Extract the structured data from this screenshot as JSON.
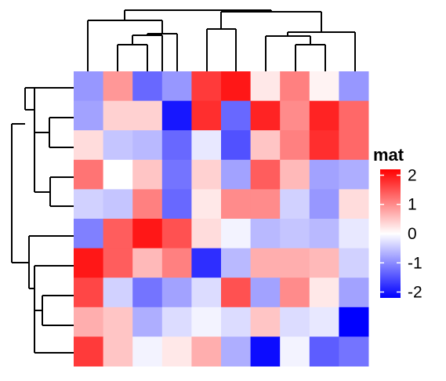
{
  "chart_data": {
    "type": "heatmap",
    "title": "",
    "xlabel": "",
    "ylabel": "",
    "rows": 10,
    "cols": 10,
    "values": [
      [
        -0.9,
        0.9,
        -1.3,
        -0.9,
        1.7,
        2.0,
        0.2,
        1.1,
        0.1,
        -0.9
      ],
      [
        -0.8,
        0.4,
        0.4,
        -2.0,
        1.8,
        -1.3,
        1.9,
        1.0,
        1.9,
        1.3
      ],
      [
        0.3,
        -0.5,
        -0.6,
        -1.3,
        -0.2,
        -1.5,
        0.5,
        1.1,
        1.8,
        1.3
      ],
      [
        1.2,
        0.0,
        0.5,
        -1.2,
        0.4,
        -0.8,
        1.4,
        0.6,
        -0.8,
        -0.7
      ],
      [
        -0.4,
        -0.5,
        1.1,
        -1.3,
        0.2,
        1.0,
        1.0,
        -0.4,
        -0.9,
        0.3
      ],
      [
        -1.1,
        1.4,
        2.0,
        1.5,
        0.3,
        -0.1,
        -0.6,
        -0.5,
        -0.6,
        -0.2
      ],
      [
        2.0,
        1.4,
        0.6,
        1.1,
        -1.8,
        -0.6,
        0.7,
        0.7,
        0.6,
        -0.4
      ],
      [
        1.6,
        -0.4,
        -1.2,
        -0.8,
        -0.3,
        1.5,
        -0.8,
        1.0,
        0.2,
        -0.8
      ],
      [
        0.7,
        0.5,
        -0.7,
        -0.3,
        -0.1,
        -0.3,
        0.5,
        -0.3,
        -0.2,
        -2.2
      ],
      [
        1.7,
        0.5,
        -0.1,
        0.2,
        0.7,
        -0.7,
        -2.1,
        -0.1,
        -1.4,
        -1.2
      ]
    ],
    "scale_min": -2.2,
    "scale_max": 2.2,
    "colors": {
      "low": "#0000ff",
      "mid": "#ffffff",
      "high": "#ff0000"
    },
    "legend": {
      "title": "mat",
      "ticks": [
        "2",
        "1",
        "0",
        "-1",
        "-2"
      ],
      "tick_values": [
        2,
        1,
        0,
        -1,
        -2
      ],
      "placement": "right"
    },
    "column_dendrogram": "top",
    "row_dendrogram": "left"
  }
}
